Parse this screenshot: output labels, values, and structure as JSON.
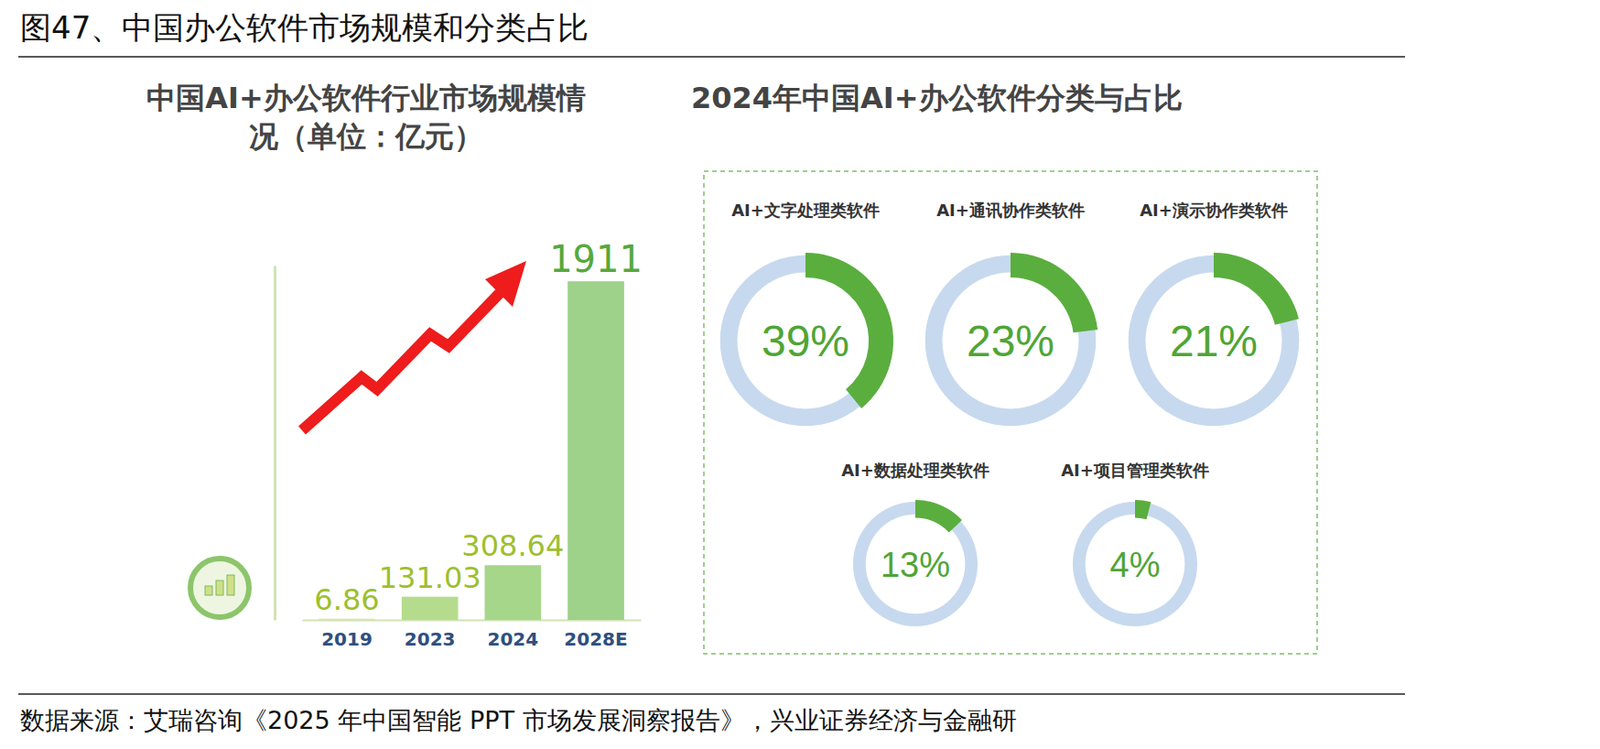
{
  "title": "图47、中国办公软件市场规模和分类占比",
  "source": "数据来源：艾瑞咨询《2025 年中国智能 PPT 市场发展洞察报告》，兴业证券经济与金融研",
  "chart_data": [
    {
      "type": "bar",
      "title": "中国AI+办公软件行业市场规模情况（单位：亿元）",
      "categories": [
        "2019",
        "2023",
        "2024",
        "2028E"
      ],
      "values": [
        6.86,
        131.03,
        308.64,
        1911
      ],
      "colors": [
        "#d8e9a2",
        "#b5dc8c",
        "#a6d68a",
        "#9ed18a"
      ],
      "ylim": [
        0,
        2000
      ],
      "data_labels": true,
      "tick_labels": "x"
    },
    {
      "type": "donut",
      "title": "2024年中国AI+办公软件分类与占比",
      "categories": [
        "AI+文字处理类软件",
        "AI+通讯协作类软件",
        "AI+演示协作类软件",
        "AI+数据处理类软件",
        "AI+项目管理类软件"
      ],
      "values": [
        39,
        23,
        21,
        13,
        4
      ],
      "value_labels": [
        "39%",
        "23%",
        "21%",
        "13%",
        "4%"
      ],
      "color": "#5aae3e",
      "data_labels": true
    }
  ]
}
